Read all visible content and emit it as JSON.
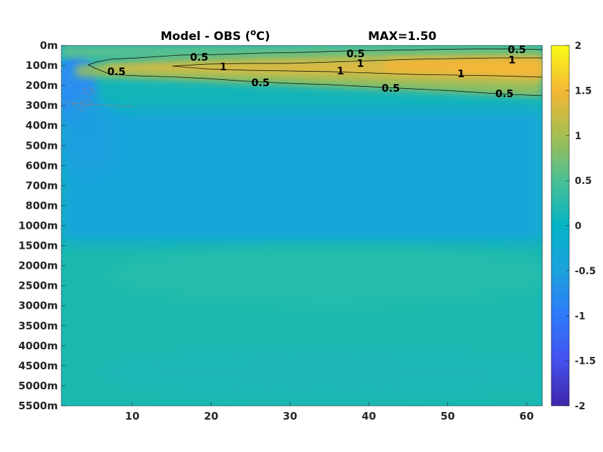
{
  "chart_data": {
    "type": "heatmap",
    "title": "Model - OBS (",
    "title_unit_sup": "o",
    "title_unit_end": "C)",
    "subtitle": "MAX=1.50",
    "colormap": "parula",
    "x_ticks": [
      10,
      20,
      30,
      40,
      50,
      60
    ],
    "xlim": [
      1,
      62
    ],
    "y_tick_labels": [
      "0m",
      "100m",
      "200m",
      "300m",
      "400m",
      "500m",
      "600m",
      "700m",
      "800m",
      "1000m",
      "1500m",
      "2000m",
      "2500m",
      "3000m",
      "3500m",
      "4000m",
      "4500m",
      "5000m",
      "5500m"
    ],
    "colorbar_ticks": [
      "2",
      "1.5",
      "1",
      "0.5",
      "0",
      "-0.5",
      "-1",
      "-1.5",
      "-2"
    ],
    "clim": [
      -2,
      2
    ],
    "contour_levels": [
      0.5,
      1
    ],
    "contour_labels": [
      {
        "text": "0.5",
        "x": 18,
        "level": 0
      },
      {
        "text": "0.5",
        "x": 39,
        "level": 0
      },
      {
        "text": "0.5",
        "x": 58,
        "level": 0
      },
      {
        "text": "1",
        "x": 21.5,
        "level": 1
      },
      {
        "text": "1",
        "x": 39,
        "level": 1
      },
      {
        "text": "1",
        "x": 57,
        "level": 1
      },
      {
        "text": "1",
        "x": 36.5,
        "level": 1
      },
      {
        "text": "1",
        "x": 52,
        "level": 1
      },
      {
        "text": "0.5",
        "x": 7.5,
        "level": 0
      },
      {
        "text": "0.5",
        "x": 26.5,
        "level": 0
      },
      {
        "text": "0.5",
        "x": 43,
        "level": 0
      },
      {
        "text": "0.5",
        "x": 57,
        "level": 0
      }
    ],
    "field_description_values": {
      "max": 1.5,
      "upper_band_depth_m": 100,
      "deep_mean": 0.05,
      "mid_mean": -0.25,
      "west_surface_min": -0.8
    }
  }
}
